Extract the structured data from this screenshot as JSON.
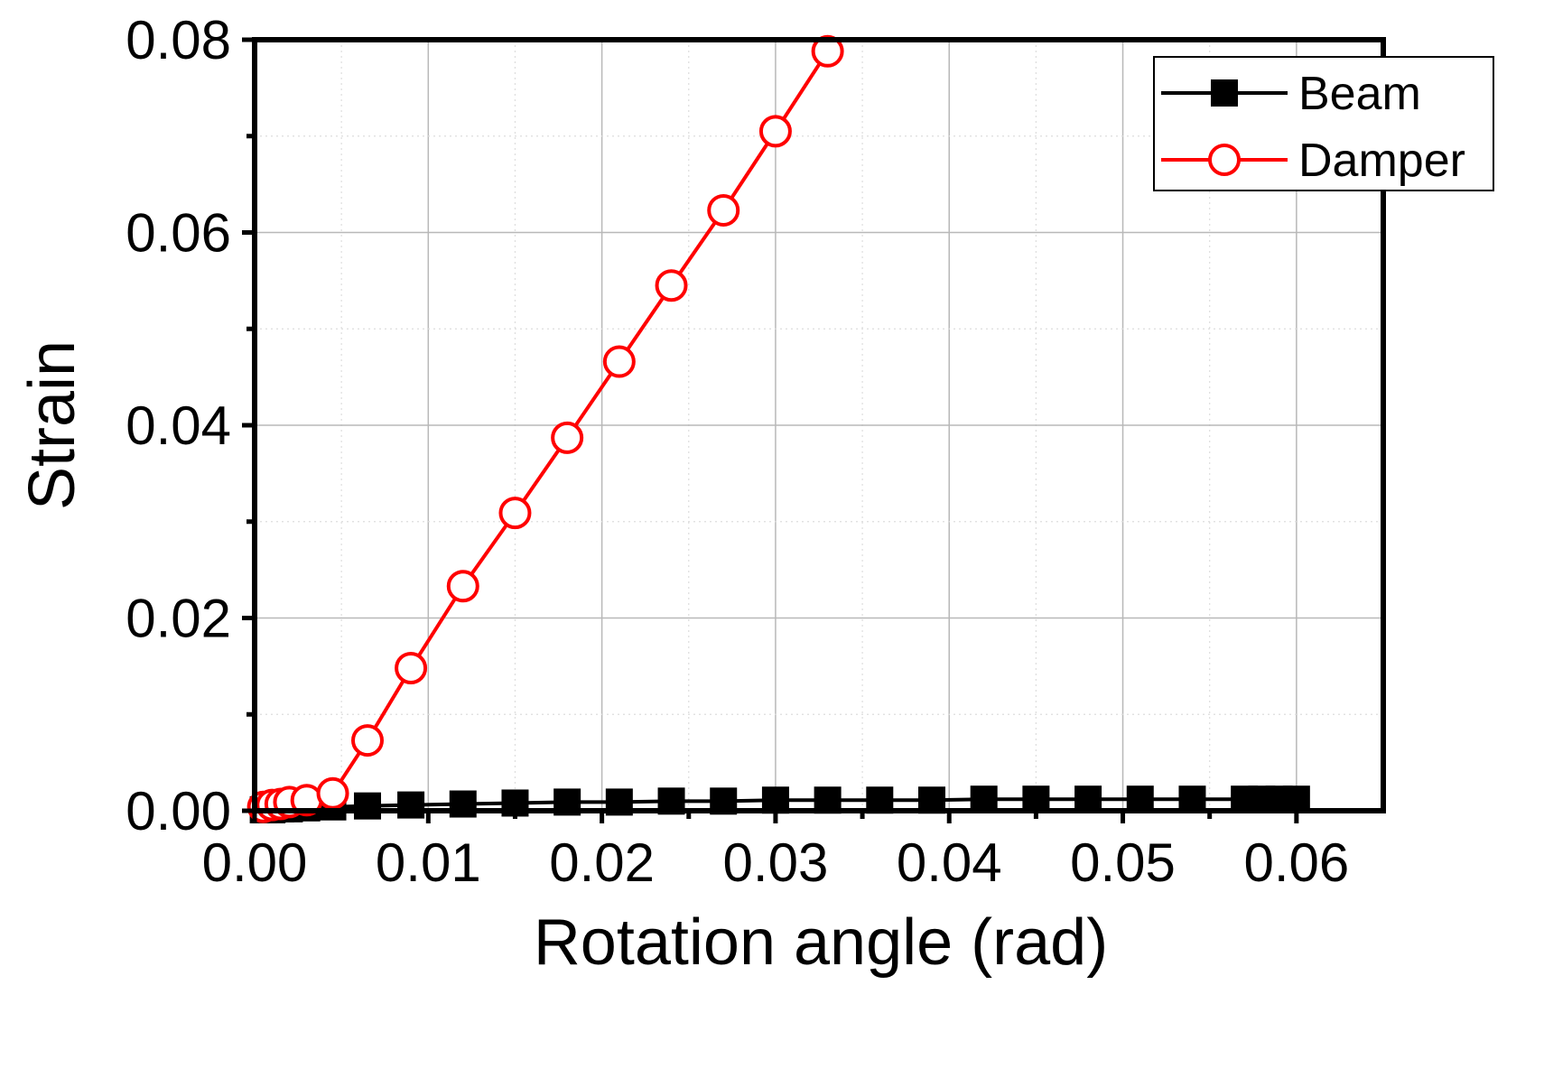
{
  "chart_data": {
    "type": "line",
    "xlabel": "Rotation angle (rad)",
    "ylabel": "Strain",
    "xlim": [
      0.0,
      0.065
    ],
    "ylim": [
      0.0,
      0.08
    ],
    "x_ticks": [
      "0.00",
      "0.01",
      "0.02",
      "0.03",
      "0.04",
      "0.05",
      "0.06"
    ],
    "x_tick_values": [
      0.0,
      0.01,
      0.02,
      0.03,
      0.04,
      0.05,
      0.06
    ],
    "y_ticks": [
      "0.00",
      "0.02",
      "0.04",
      "0.06",
      "0.08"
    ],
    "y_tick_values": [
      0.0,
      0.02,
      0.04,
      0.06,
      0.08
    ],
    "y_minor_tick_values": [
      0.01,
      0.03,
      0.05,
      0.07
    ],
    "grid": true,
    "legend_position": "top-right",
    "series": [
      {
        "name": "Beam",
        "color": "#000000",
        "marker": "filled-square",
        "x": [
          0.0005,
          0.001,
          0.0015,
          0.002,
          0.003,
          0.0045,
          0.0065,
          0.009,
          0.012,
          0.015,
          0.018,
          0.021,
          0.024,
          0.027,
          0.03,
          0.033,
          0.036,
          0.039,
          0.042,
          0.045,
          0.048,
          0.051,
          0.054,
          0.057,
          0.058,
          0.059,
          0.06
        ],
        "y": [
          0.0001,
          0.0001,
          0.0002,
          0.0002,
          0.0003,
          0.0004,
          0.0005,
          0.0006,
          0.0007,
          0.0008,
          0.0009,
          0.0009,
          0.001,
          0.001,
          0.0011,
          0.0011,
          0.0011,
          0.0011,
          0.0012,
          0.0012,
          0.0012,
          0.0012,
          0.0012,
          0.0012,
          0.0012,
          0.0012,
          0.0012
        ]
      },
      {
        "name": "Damper",
        "color": "#ff0000",
        "marker": "open-circle",
        "x": [
          0.0005,
          0.001,
          0.0015,
          0.002,
          0.003,
          0.0045,
          0.0065,
          0.009,
          0.012,
          0.015,
          0.018,
          0.021,
          0.024,
          0.027,
          0.03,
          0.033
        ],
        "y": [
          0.0004,
          0.0006,
          0.0007,
          0.0009,
          0.0011,
          0.0018,
          0.0073,
          0.0148,
          0.0233,
          0.0309,
          0.0387,
          0.0466,
          0.0545,
          0.0623,
          0.0705,
          0.0788
        ]
      }
    ]
  }
}
